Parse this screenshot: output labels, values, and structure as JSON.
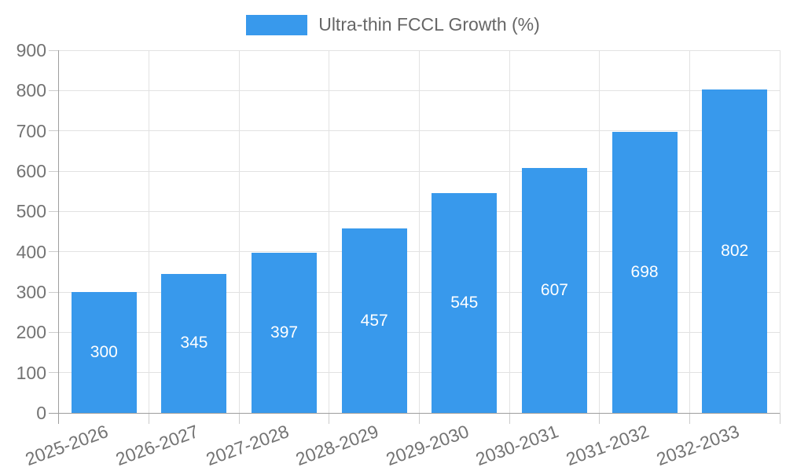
{
  "chart_data": {
    "type": "bar",
    "title": "Ultra-thin FCCL Growth (%)",
    "legend": {
      "label": "Ultra-thin FCCL Growth (%)",
      "position": "top-center"
    },
    "categories": [
      "2025-2026",
      "2026-2027",
      "2027-2028",
      "2028-2029",
      "2029-2030",
      "2030-2031",
      "2031-2032",
      "2032-2033"
    ],
    "values": [
      300,
      345,
      397,
      457,
      545,
      607,
      698,
      802
    ],
    "bar_value_labels": [
      "300",
      "345",
      "397",
      "457",
      "545",
      "607",
      "698",
      "802"
    ],
    "xlabel": "",
    "ylabel": "",
    "ylim": [
      0,
      900
    ],
    "ytick_step": 100,
    "ytick_labels": [
      "0",
      "100",
      "200",
      "300",
      "400",
      "500",
      "600",
      "700",
      "800",
      "900"
    ],
    "grid": true,
    "x_label_rotation_deg": -20,
    "colors": {
      "bar": "#3899ec",
      "bar_label_text": "#ffffff",
      "axis_line": "#9e9e9e",
      "grid_line": "#e2e2e2",
      "tick_line": "#cccccc",
      "axis_text": "#737373",
      "legend_text": "#666666",
      "background": "#ffffff"
    }
  }
}
